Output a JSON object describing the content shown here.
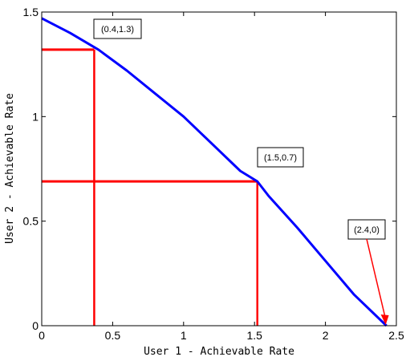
{
  "chart_data": {
    "type": "line",
    "xlabel": "User 1 - Achievable Rate",
    "ylabel": "User 2 - Achievable Rate",
    "xlim": [
      0,
      2.5
    ],
    "ylim": [
      0,
      1.5
    ],
    "x_ticks": [
      "0",
      "0.5",
      "1",
      "1.5",
      "2",
      "2.5"
    ],
    "y_ticks": [
      "0",
      "0.5",
      "1",
      "1.5"
    ],
    "grid": false,
    "colors": {
      "curve": "#0000ff",
      "guides": "#ff0000"
    },
    "series": [
      {
        "x": [
          0,
          0.2,
          0.4,
          0.6,
          0.8,
          1.0,
          1.2,
          1.4,
          1.52,
          1.6,
          1.8,
          2.0,
          2.2,
          2.43
        ],
        "y": [
          1.47,
          1.4,
          1.32,
          1.22,
          1.11,
          1.0,
          0.87,
          0.74,
          0.69,
          0.62,
          0.47,
          0.31,
          0.15,
          0.0
        ]
      }
    ],
    "guides": [
      {
        "x": 0.37,
        "y": 1.32
      },
      {
        "x": 1.52,
        "y": 0.69
      }
    ],
    "annotations": [
      {
        "text": "(0.4,1.3)",
        "x": 0.37,
        "y": 1.32
      },
      {
        "text": "(1.5,0.7)",
        "x": 1.52,
        "y": 0.69
      },
      {
        "text": "(2.4,0)",
        "x": 2.43,
        "y": 0.0,
        "arrow": true
      }
    ]
  }
}
